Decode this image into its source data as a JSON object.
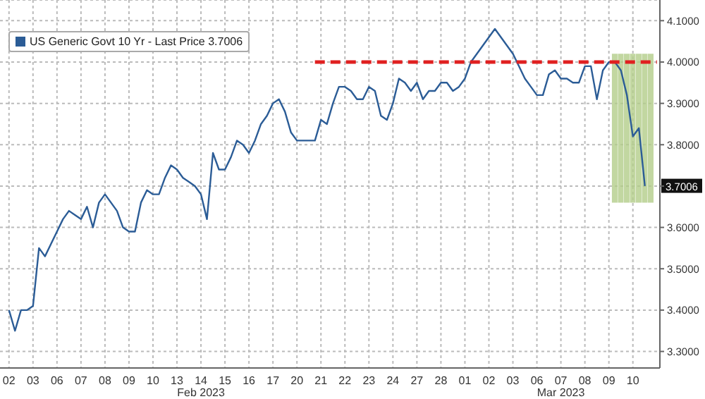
{
  "chart_data": {
    "type": "line",
    "categories": [
      null,
      "02",
      null,
      null,
      null,
      "03",
      null,
      null,
      null,
      "06",
      null,
      null,
      null,
      "07",
      null,
      null,
      null,
      "08",
      null,
      null,
      null,
      "09",
      null,
      null,
      null,
      "10",
      null,
      null,
      null,
      "13",
      null,
      null,
      null,
      "14",
      null,
      null,
      null,
      "15",
      null,
      null,
      null,
      "16",
      null,
      null,
      null,
      "17",
      null,
      null,
      null,
      "20",
      null,
      null,
      null,
      "21",
      null,
      null,
      null,
      "22",
      null,
      null,
      null,
      "23",
      null,
      null,
      null,
      "24",
      null,
      null,
      null,
      "27",
      null,
      null,
      null,
      "28",
      null,
      null,
      null,
      "01",
      null,
      null,
      null,
      "02",
      null,
      null,
      null,
      "03",
      null,
      null,
      null,
      "06",
      null,
      null,
      null,
      "07",
      null,
      null,
      null,
      "08",
      null,
      null,
      null,
      "09",
      null,
      null,
      null,
      "10",
      null,
      null,
      null,
      null
    ],
    "series": [
      {
        "name": "US Generic Govt 10 Yr - Last Price 3.7006",
        "color": "#2b5c96",
        "values": [
          null,
          3.4,
          3.35,
          3.4,
          3.4,
          3.41,
          3.55,
          3.53,
          3.56,
          3.59,
          3.62,
          3.64,
          3.63,
          3.62,
          3.65,
          3.6,
          3.66,
          3.68,
          3.66,
          3.64,
          3.6,
          3.59,
          3.59,
          3.66,
          3.69,
          3.68,
          3.68,
          3.72,
          3.75,
          3.74,
          3.72,
          3.71,
          3.7,
          3.68,
          3.62,
          3.78,
          3.74,
          3.74,
          3.77,
          3.81,
          3.8,
          3.78,
          3.81,
          3.85,
          3.87,
          3.9,
          3.91,
          3.88,
          3.83,
          3.81,
          3.81,
          3.81,
          3.81,
          3.86,
          3.85,
          3.9,
          3.94,
          3.94,
          3.93,
          3.91,
          3.91,
          3.94,
          3.93,
          3.87,
          3.86,
          3.9,
          3.96,
          3.95,
          3.93,
          3.95,
          3.91,
          3.93,
          3.93,
          3.95,
          3.95,
          3.93,
          3.94,
          3.96,
          4.0,
          4.02,
          4.04,
          4.06,
          4.08,
          4.06,
          4.04,
          4.02,
          3.99,
          3.96,
          3.94,
          3.92,
          3.92,
          3.97,
          3.98,
          3.96,
          3.96,
          3.95,
          3.95,
          3.99,
          3.99,
          3.91,
          3.98,
          4.0,
          4.0,
          3.98,
          3.92,
          3.82,
          3.84,
          3.7,
          null,
          null
        ]
      },
      {
        "type": "line",
        "color": "#e02020",
        "line_style": "dashed",
        "values": [
          null,
          null,
          null,
          null,
          null,
          null,
          null,
          null,
          null,
          null,
          null,
          null,
          null,
          null,
          null,
          null,
          null,
          null,
          null,
          null,
          null,
          null,
          null,
          null,
          null,
          null,
          null,
          null,
          null,
          null,
          null,
          null,
          null,
          null,
          null,
          null,
          null,
          null,
          null,
          null,
          null,
          null,
          null,
          null,
          null,
          null,
          null,
          null,
          null,
          null,
          null,
          null,
          4.0,
          4.0,
          4.0,
          4.0,
          4.0,
          4.0,
          4.0,
          4.0,
          4.0,
          4.0,
          4.0,
          4.0,
          4.0,
          4.0,
          4.0,
          4.0,
          4.0,
          4.0,
          4.0,
          4.0,
          4.0,
          4.0,
          4.0,
          4.0,
          4.0,
          4.0,
          4.0,
          4.0,
          4.0,
          4.0,
          4.0,
          4.0,
          4.0,
          4.0,
          4.0,
          4.0,
          4.0,
          4.0,
          4.0,
          4.0,
          4.0,
          4.0,
          4.0,
          4.0,
          4.0,
          4.0,
          4.0,
          4.0,
          4.0,
          4.0,
          4.0,
          4.0,
          4.0,
          4.0,
          4.0,
          4.0,
          4.0,
          4.0
        ]
      },
      {
        "type": "bar",
        "color": "#b3cd8a",
        "values": [
          null,
          null,
          null,
          null,
          null,
          null,
          null,
          null,
          null,
          null,
          null,
          null,
          null,
          null,
          null,
          null,
          null,
          null,
          null,
          null,
          null,
          null,
          null,
          null,
          null,
          null,
          null,
          null,
          null,
          null,
          null,
          null,
          null,
          null,
          null,
          null,
          null,
          null,
          null,
          null,
          null,
          null,
          null,
          null,
          null,
          null,
          null,
          null,
          null,
          null,
          null,
          null,
          null,
          null,
          null,
          null,
          null,
          null,
          null,
          null,
          null,
          null,
          null,
          null,
          null,
          null,
          null,
          null,
          null,
          null,
          null,
          null,
          null,
          null,
          null,
          null,
          null,
          null,
          null,
          null,
          null,
          null,
          null,
          null,
          null,
          null,
          null,
          null,
          null,
          null,
          null,
          null,
          null,
          null,
          null,
          null,
          null,
          null,
          null,
          null,
          null,
          null,
          0.36,
          0.36,
          0.36,
          0.36,
          0.36,
          0.36,
          0.36,
          null
        ],
        "base": [
          null,
          null,
          null,
          null,
          null,
          null,
          null,
          null,
          null,
          null,
          null,
          null,
          null,
          null,
          null,
          null,
          null,
          null,
          null,
          null,
          null,
          null,
          null,
          null,
          null,
          null,
          null,
          null,
          null,
          null,
          null,
          null,
          null,
          null,
          null,
          null,
          null,
          null,
          null,
          null,
          null,
          null,
          null,
          null,
          null,
          null,
          null,
          null,
          null,
          null,
          null,
          null,
          null,
          null,
          null,
          null,
          null,
          null,
          null,
          null,
          null,
          null,
          null,
          null,
          null,
          null,
          null,
          null,
          null,
          null,
          null,
          null,
          null,
          null,
          null,
          null,
          null,
          null,
          null,
          null,
          null,
          null,
          null,
          null,
          null,
          null,
          null,
          null,
          null,
          null,
          null,
          null,
          null,
          null,
          null,
          null,
          null,
          null,
          null,
          null,
          null,
          null,
          3.66,
          3.66,
          3.66,
          3.66,
          3.66,
          3.66,
          3.66,
          null
        ]
      }
    ],
    "ylim": [
      3.26,
      4.15
    ],
    "yticks": [
      {
        "value": 3.3,
        "label": "3.3000"
      },
      {
        "value": 3.4,
        "label": "3.4000"
      },
      {
        "value": 3.5,
        "label": "3.5000"
      },
      {
        "value": 3.6,
        "label": "3.6000"
      },
      {
        "value": 3.7,
        "label": null
      },
      {
        "value": 3.8,
        "label": "3.8000"
      },
      {
        "value": 3.9,
        "label": "3.9000"
      },
      {
        "value": 4.0,
        "label": "4.0000"
      },
      {
        "value": 4.1,
        "label": "4.1000"
      }
    ],
    "annotations": [
      "Feb 2023",
      "Mar 2023",
      {
        "text": "3.7006",
        "y": 3.7006
      }
    ],
    "grid": true,
    "legend": "top left",
    "line_style": "solid",
    "marker": "none"
  }
}
